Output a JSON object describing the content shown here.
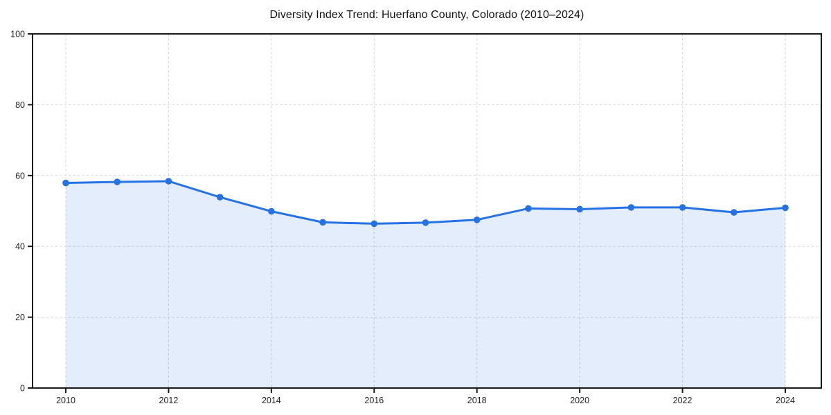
{
  "chart_data": {
    "type": "area",
    "title": "Diversity Index Trend: Huerfano County, Colorado (2010–2024)",
    "series_name": "Diversity Index",
    "x": [
      2010,
      2011,
      2012,
      2013,
      2014,
      2015,
      2016,
      2017,
      2018,
      2019,
      2020,
      2021,
      2022,
      2023,
      2024
    ],
    "values": [
      57.9,
      58.2,
      58.4,
      53.9,
      49.9,
      46.8,
      46.4,
      46.7,
      47.5,
      50.7,
      50.5,
      51.0,
      51.0,
      49.6,
      50.9
    ],
    "xlabel": "",
    "ylabel": "",
    "ylim": [
      0,
      100
    ],
    "xticks": [
      2010,
      2012,
      2014,
      2016,
      2018,
      2020,
      2022,
      2024
    ],
    "yticks": [
      0,
      20,
      40,
      60,
      80,
      100
    ],
    "grid": true,
    "grid_style": "dashed",
    "legend": false,
    "marker": "circle",
    "colors": {
      "line": "#2472e4",
      "marker": "#2472e4",
      "fill": "rgba(36,114,228,0.13)",
      "grid": "#dcdcdc",
      "spine": "#1a1a1a",
      "tick_label": "#222222",
      "title": "#111111",
      "background": "#ffffff"
    }
  }
}
